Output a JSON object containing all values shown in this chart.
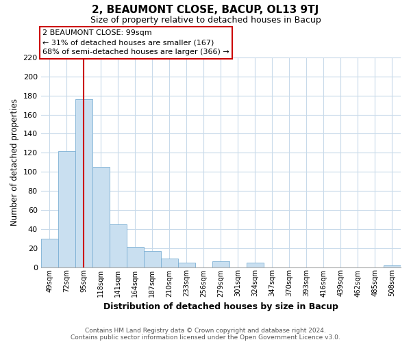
{
  "title": "2, BEAUMONT CLOSE, BACUP, OL13 9TJ",
  "subtitle": "Size of property relative to detached houses in Bacup",
  "xlabel": "Distribution of detached houses by size in Bacup",
  "ylabel": "Number of detached properties",
  "categories": [
    "49sqm",
    "72sqm",
    "95sqm",
    "118sqm",
    "141sqm",
    "164sqm",
    "187sqm",
    "210sqm",
    "233sqm",
    "256sqm",
    "279sqm",
    "301sqm",
    "324sqm",
    "347sqm",
    "370sqm",
    "393sqm",
    "416sqm",
    "439sqm",
    "462sqm",
    "485sqm",
    "508sqm"
  ],
  "values": [
    30,
    122,
    176,
    105,
    45,
    21,
    17,
    9,
    5,
    0,
    6,
    0,
    5,
    0,
    0,
    0,
    0,
    0,
    0,
    0,
    2
  ],
  "bar_color": "#c9dff0",
  "bar_edge_color": "#7bafd4",
  "highlight_index": 2,
  "highlight_line_color": "#cc0000",
  "ylim": [
    0,
    220
  ],
  "yticks": [
    0,
    20,
    40,
    60,
    80,
    100,
    120,
    140,
    160,
    180,
    200,
    220
  ],
  "annotation_title": "2 BEAUMONT CLOSE: 99sqm",
  "annotation_line1": "← 31% of detached houses are smaller (167)",
  "annotation_line2": "68% of semi-detached houses are larger (366) →",
  "annotation_box_color": "#ffffff",
  "annotation_box_edge": "#cc0000",
  "footer1": "Contains HM Land Registry data © Crown copyright and database right 2024.",
  "footer2": "Contains public sector information licensed under the Open Government Licence v3.0.",
  "grid_color": "#c8daea",
  "background_color": "#ffffff",
  "title_fontsize": 11,
  "subtitle_fontsize": 9
}
